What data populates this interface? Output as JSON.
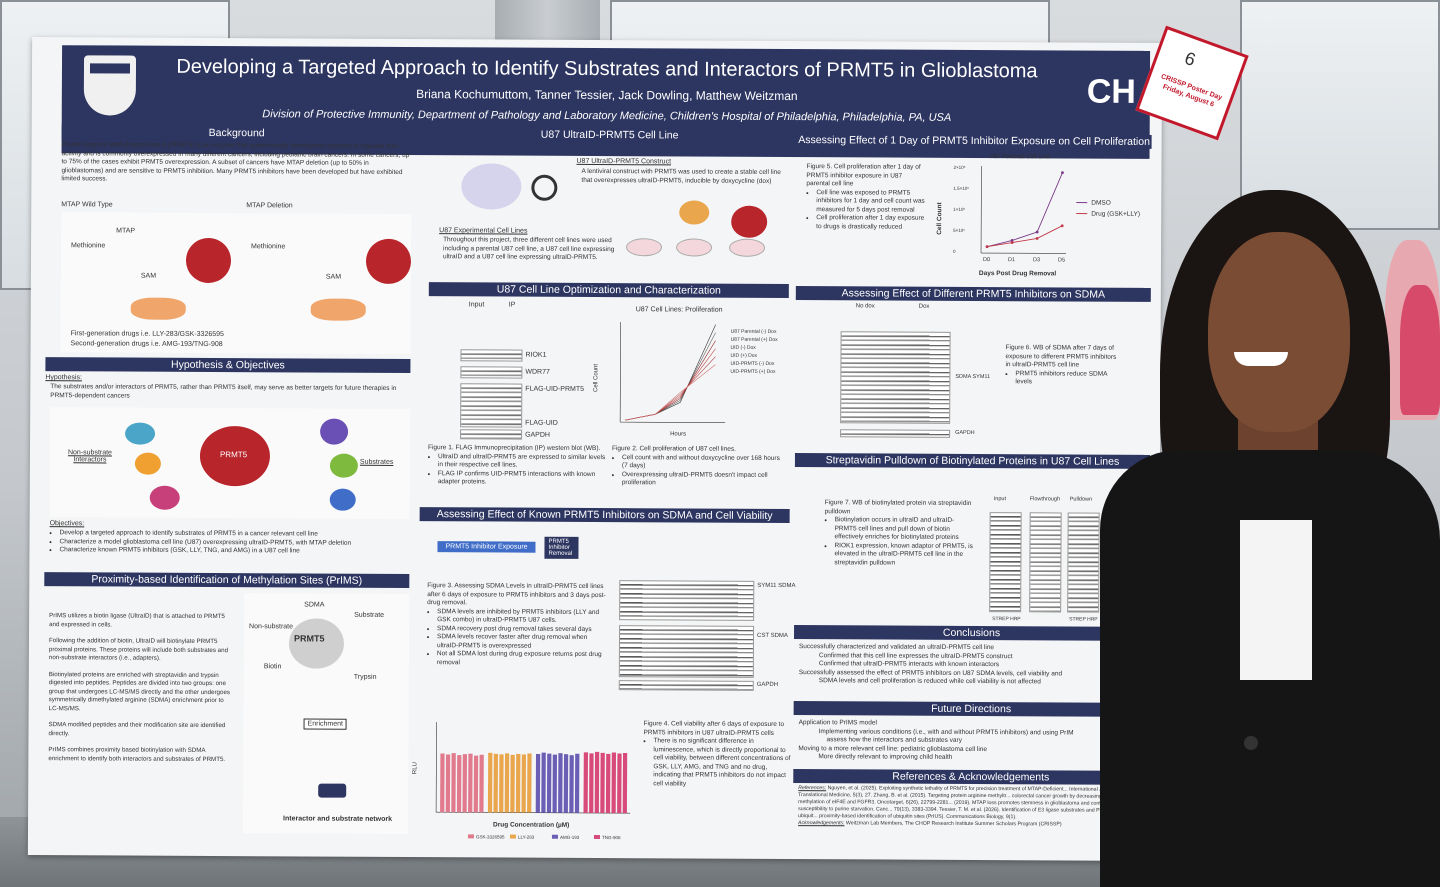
{
  "poster": {
    "title": "Developing a Targeted Approach to Identify Substrates and Interactors of PRMT5 in Glioblastoma",
    "authors": "Briana Kochumuttom, Tanner Tessier, Jack Dowling, Matthew Weitzman",
    "affiliation": "Division of Protective Immunity, Department of Pathology and Laboratory Medicine, Children's Hospital of Philadelphia, Philadelphia, PA, USA",
    "logo_text": "CH",
    "sections": {
      "background": {
        "title": "Background",
        "text": "Protein Arginine Methyltransferase 5 (PRMT5) is an enzyme that symmetrically dimethylates proteins to regulate their activity and is commonly overexpressed in many different cancers, including pediatric brain cancers. In some cancers, up to 75% of the cases exhibit PRMT5 overexpression. A subset of cancers have MTAP deletion (up to 50% in glioblastomas) and are sensitive to PRMT5 inhibition. Many PRMT5 inhibitors have been developed but have exhibited limited success.",
        "mtap_wt": "MTAP Wild Type",
        "mtap_del": "MTAP Deletion",
        "labels": [
          "Methionine",
          "MTAP",
          "SAM",
          "PRMT5",
          "Substrate"
        ],
        "legend": [
          "First-generation drugs i.e. LLY-283/GSK-3326595",
          "Second-generation drugs i.e. AMG-193/TNG-908"
        ]
      },
      "hypothesis": {
        "title": "Hypothesis & Objectives",
        "hyp_label": "Hypothesis:",
        "hyp_text": "The substrates and/or interactors of PRMT5, rather than PRMT5 itself, may serve as better targets for future therapies in PRMT5-dependent cancers",
        "center": "PRMT5",
        "left_label": "Non-substrate Interactors",
        "right_label": "Substrates",
        "obj_label": "Objectives:",
        "objectives": [
          "Develop a targeted approach to identify substrates of PRMT5 in a cancer relevant cell line",
          "Characterize a model glioblastoma cell line (U87) overexpressing ultraID-PRMT5, with MTAP deletion",
          "Characterize known PRMT5 inhibitors (GSK, LLY, TNG, and AMG) in a U87 cell line"
        ]
      },
      "prims": {
        "title": "Proximity-based Identification of Methylation Sites (PrIMS)",
        "paras": [
          "PrIMS utilizes a biotin ligase (UltraID) that is attached to PRMT5 and expressed in cells.",
          "Following the addition of biotin, UltraID will biotinylate PRMT5 proximal proteins. These proteins will include both substrates and non-substrate interactors (i.e., adapters).",
          "Biotinylated proteins are enriched with streptavidin and trypsin digested into peptides. Peptides are divided into two groups: one group that undergoes LC-MS/MS directly and the other undergoes symmetrically dimethylated arginine (SDMA) enrichment prior to LC-MS/MS.",
          "SDMA modified peptides and their modification site are identified directly.",
          "PrIMS combines proximity based biotinylation with SDMA enrichment to identify both interactors and substrates of PRMT5."
        ],
        "labels": [
          "SDMA",
          "Substrate",
          "Non-substrate",
          "PRMT5",
          "Biotin",
          "UID",
          "Trypsin",
          "Enrichment",
          "Interactor and substrate network"
        ]
      },
      "cellline": {
        "title": "U87 UltraID-PRMT5 Cell Line",
        "construct_label": "U87 UltraID-PRMT5 Construct",
        "construct_text": "A lentiviral construct with PRMT5 was used to create a stable cell line that overexpresses ultraID-PRMT5, inducible by doxycycline (dox)",
        "exp_label": "U87 Experimental Cell Lines",
        "exp_text": "Throughout this project, three different cell lines were used including a parental U87 cell line, a U87 cell line expressing ultraID and a U87 cell line expressing ultraID-PRMT5.",
        "dish_labels": [
          "U87",
          "U87 ultraID (UID)",
          "U87 ultraID-PRMT5 (UID-PRMT5)"
        ],
        "proteins": [
          "UltraID",
          "PRMT5",
          "UltraID"
        ]
      },
      "optim": {
        "title": "U87 Cell Line Optimization and Characterization",
        "blot_heads": [
          "Input",
          "IP"
        ],
        "blot_bands": [
          "RIOK1",
          "WDR77",
          "FLAG-UID-PRMT5",
          "FLAG-UID",
          "GAPDH"
        ],
        "fig1": "Figure 1. FLAG Immunoprecipitation (IP) western blot (WB).",
        "fig1_bullets": [
          "UltraID and ultraID-PRMT5 are expressed to similar levels in their respective cell lines.",
          "FLAG IP confirms UID-PRMT5 interactions with known adapter proteins."
        ],
        "fig2": "Figure 2. Cell proliferation of U87 cell lines.",
        "fig2_bullets": [
          "Cell count with and without doxycycline over 168 hours (7 days)",
          "Overexpressing ultraID-PRMT5 doesn't impact cell proliferation"
        ]
      },
      "sdma_viability": {
        "title": "Assessing Effect of Known PRMT5 Inhibitors on SDMA and Cell Viability",
        "timeline": [
          "PRMT5 Inhibitor Exposure",
          "PRMT5 Inhibitor Removal"
        ],
        "blot_labels": [
          "SYM11 SDMA",
          "CST SDMA",
          "GAPDH"
        ],
        "fig3": "Figure 3. Assessing SDMA Levels in ultraID-PRMT5 cell lines after 6 days of exposure to PRMT5 inhibitors and 3 days post-drug removal.",
        "fig3_bullets": [
          "SDMA levels are inhibited by PRMT5 inhibitors (LLY and GSK combo) in ultraID-PRMT5 U87 cells.",
          "SDMA recovery post drug removal takes several days",
          "SDMA levels recover faster after drug removal when ultraID-PRMT5 is overexpressed",
          "Not all SDMA lost during drug exposure returns post drug removal"
        ],
        "fig4": "Figure 4. Cell viability after 6 days of exposure to PRMT5 inhibitors in U87 ultraID-PRMT5 cells",
        "fig4_bullets": [
          "There is no significant difference in luminescence, which is directly proportional to cell viability, between different concentrations of GSK, LLY, AMG, and TNG and no drug, indicating that PRMT5 inhibitors do not impact cell viability"
        ],
        "ylabel": "RLU",
        "xlabel": "Drug Concentration (µM)",
        "legend": [
          "GSK-3326595",
          "LLY-283",
          "AMG-193",
          "TNG-908"
        ]
      },
      "proliferation": {
        "title": "Assessing Effect of 1 Day of PRMT5 Inhibitor Exposure on Cell Proliferation",
        "fig5": "Figure 5. Cell proliferation after 1 day of PRMT5 inhibitor exposure in U87 parental cell line",
        "fig5_bullets": [
          "Cell line was exposed to PRMT5 inhibitors for 1 day and cell count was measured for 5 days post removal",
          "Cell proliferation after 1 day exposure to drugs is drastically reduced"
        ]
      },
      "inhibitors_sdma": {
        "title": "Assessing Effect of Different PRMT5 Inhibitors on SDMA",
        "fig6": "Figure 6. WB of SDMA after 7 days of exposure to different PRMT5 inhibitors in ultraID-PRMT5 cell line",
        "fig6_bullets": [
          "PRMT5 inhibitors reduce SDMA levels"
        ],
        "blot_heads": [
          "No dox",
          "Dox"
        ],
        "blot_labels": [
          "SDMA SYM11",
          "GAPDH"
        ]
      },
      "streptavidin": {
        "title": "Streptavidin Pulldown of Biotinylated Proteins in U87 Cell Lines",
        "fig7": "Figure 7. WB of biotinylated protein via streptavidin pulldown",
        "fig7_bullets": [
          "Biotinylation occurs in ultraID and ultraID-PRMT5 cell lines and pull down of biotin effectively enriches for biotinylated proteins",
          "RIOK1 expression, known adaptor of PRMT5, is elevated in the ultraID-PRMT5 cell line in the streptavidin pulldown"
        ],
        "blot_heads": [
          "Input",
          "Flowthrough",
          "Pulldown"
        ],
        "blot_labels": [
          "STREP HRP",
          "STREP HRP",
          "RIOK1"
        ]
      },
      "conclusions": {
        "title": "Conclusions",
        "lines": [
          "Successfully characterized and validated an ultraID-PRMT5 cell line",
          "Confirmed that this cell line expresses the ultraID-PRMT5 construct",
          "Confirmed that ultraID-PRMT5 interacts with known interactors",
          "Successfully assessed the effect of PRMT5 inhibitors on U87 SDMA levels, cell viability and",
          "SDMA levels and cell proliferation is reduced while cell viability is not affected"
        ]
      },
      "future": {
        "title": "Future Directions",
        "lines": [
          "Application to PrIMS model",
          "Implementing various conditions (i.e., with and without PRMT5 inhibitors) and using PrIM",
          "assess how the interactors and substrates vary",
          "Moving to a more relevant cell line: pediatric glioblastoma cell line",
          "More directly relevant to improving child health"
        ]
      },
      "references": {
        "title": "References & Acknowledgements",
        "refs_label": "References:",
        "refs_text": "Nguyen, et al. (2025). Exploiting synthetic lethality of PRMT5 for precision treatment of MTAP-Deficient... International Journal of Translational Medicine, 5(3), 27. Zhang, B. et al. (2015). Targeting protein arginine methyltr... colorectal cancer growth by decreasing arginine methylation of eIF4E and FGFR3. Oncotarget, 6(26), 22799-2281... (2019). MTAP loss promotes stemness in glioblastoma and confers unique susceptibility to purine starvation. Canc... 79(13), 3383-3394. Tessier, T. M. et al. (2026). Identification of E3 ligase substrates and PROTAC-induced ubiquit... proximity-based identification of ubiquitin sites (PrIUS). Communications Biology, 9(1).",
        "ack_label": "Acknowledgements:",
        "ack_text": "Weitzman Lab Members, The CHOP Research Institute Summer Scholars Program (CRISSP)"
      }
    },
    "chart_fig2": {
      "title": "U87 Cell Lines: Proliferation",
      "xlabel": "Hours",
      "ylabel": "Cell Count",
      "legend": [
        "U87 Parental (-) Dox",
        "U87 Parental (+) Dox",
        "UID (-) Dox",
        "UID (+) Dox",
        "UID-PRMT5 (-) Dox",
        "UID-PRMT5 (+) Dox"
      ],
      "xticks": [
        "0",
        "50",
        "100",
        "150",
        "200"
      ]
    },
    "chart_fig5": {
      "title": "U87 Parental Cell Line: Proliferation after 1 Day of Drug Exposure",
      "xlabel": "Days Post Drug Removal",
      "ylabel": "Cell Count",
      "legend": [
        "DMSO",
        "Drug (GSK+LLY)"
      ],
      "xticks": [
        "D0",
        "D1",
        "D3",
        "D5"
      ],
      "yticks": [
        "2×10⁶",
        "1.5×10⁶",
        "1×10⁶",
        "5×10⁵",
        "0"
      ]
    }
  },
  "tag": {
    "number": "6",
    "text": "CRISSP Poster Day Friday, August 6"
  },
  "colors": {
    "banner": "#2d3561",
    "prmt5": "#b8262c",
    "tag_red": "#c2182b",
    "gsk": "#e07a8c",
    "lly": "#e9a64c",
    "amg": "#6a5fb5",
    "tng": "#d84a7a"
  },
  "chart_data": [
    {
      "type": "line",
      "title": "U87 Parental Cell Line: Proliferation after 1 Day of Drug Exposure",
      "xlabel": "Days Post Drug Removal",
      "ylabel": "Cell Count",
      "categories": [
        "D0",
        "D1",
        "D3",
        "D5"
      ],
      "ylim": [
        0,
        2000000
      ],
      "series": [
        {
          "name": "DMSO",
          "values": [
            150000,
            300000,
            500000,
            1900000
          ]
        },
        {
          "name": "Drug (GSK+LLY)",
          "values": [
            150000,
            250000,
            350000,
            650000
          ]
        }
      ]
    },
    {
      "type": "bar",
      "ylabel": "RLU",
      "xlabel": "Drug Concentration (µM)",
      "ylim": [
        0,
        18000
      ],
      "series": [
        {
          "name": "GSK-3326595",
          "values": [
            12000,
            11800,
            12100,
            11700,
            11900,
            12000,
            11600,
            11800
          ]
        },
        {
          "name": "LLY-283",
          "values": [
            12200,
            12000,
            11900,
            12100,
            11800,
            12000,
            11900,
            12100
          ]
        },
        {
          "name": "AMG-193",
          "values": [
            12000,
            12300,
            12100,
            11900,
            12200,
            12000,
            11800,
            12100
          ]
        },
        {
          "name": "TNG-908",
          "values": [
            12400,
            12200,
            12500,
            12300,
            12100,
            12400,
            12200,
            12300
          ]
        }
      ]
    }
  ]
}
